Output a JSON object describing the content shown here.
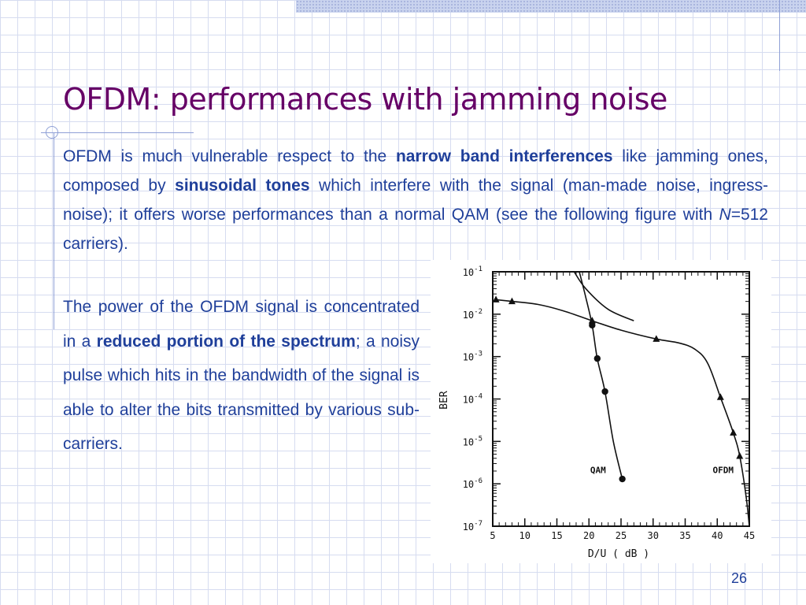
{
  "slide": {
    "title": "OFDM: performances with jamming noise",
    "page_number": "26",
    "para1": [
      {
        "t": "OFDM is much vulnerable respect to the "
      },
      {
        "t": "narrow band interferences",
        "b": true
      },
      {
        "t": " like jamming ones, composed by "
      },
      {
        "t": "sinusoidal tones",
        "b": true
      },
      {
        "t": " which interfere with the signal (man-made noise, ingress-noise); it offers worse performances than a normal QAM (see the following figure with "
      },
      {
        "t": "N",
        "i": true
      },
      {
        "t": "=512 carriers)."
      }
    ],
    "para2": [
      {
        "t": "The power of the OFDM signal is concentrated in a "
      },
      {
        "t": "reduced portion of the spectrum",
        "b": true
      },
      {
        "t": "; a noisy pulse which hits in the bandwidth of the signal is able to alter the bits transmitted by various sub-carriers."
      }
    ]
  },
  "chart_data": {
    "type": "line",
    "xlabel": "D/U ( dB )",
    "ylabel": "BER",
    "xlim": [
      5,
      45
    ],
    "ylim": [
      1e-07,
      0.1
    ],
    "log_y": true,
    "x_ticks": [
      "5",
      "10",
      "15",
      "20",
      "25",
      "30",
      "35",
      "40",
      "45"
    ],
    "y_ticks": [
      {
        "base": "10",
        "exp": "-1"
      },
      {
        "base": "10",
        "exp": "-2"
      },
      {
        "base": "10",
        "exp": "-3"
      },
      {
        "base": "10",
        "exp": "-4"
      },
      {
        "base": "10",
        "exp": "-5"
      },
      {
        "base": "10",
        "exp": "-6"
      },
      {
        "base": "10",
        "exp": "-7"
      }
    ],
    "series": [
      {
        "name": "QAM",
        "marker": "circle",
        "points": [
          [
            20.5,
            0.0055
          ],
          [
            21.3,
            0.0009
          ],
          [
            22.5,
            0.00015
          ],
          [
            25.2,
            1.3e-06
          ]
        ],
        "curve": [
          [
            18.5,
            0.15
          ],
          [
            19.5,
            0.025
          ],
          [
            20.5,
            0.0055
          ],
          [
            21.3,
            0.0009
          ],
          [
            22.5,
            0.00015
          ],
          [
            23.8,
            1e-05
          ],
          [
            25.2,
            1.3e-06
          ]
        ],
        "label_at": [
          20.2,
          1.8e-06
        ]
      },
      {
        "name": "OFDM",
        "marker": "triangle",
        "points": [
          [
            5.5,
            0.022
          ],
          [
            8,
            0.02
          ],
          [
            20.5,
            0.007
          ],
          [
            30.5,
            0.0026
          ],
          [
            40.5,
            0.00011
          ],
          [
            42.5,
            1.6e-05
          ],
          [
            43.5,
            4.5e-06
          ]
        ],
        "curve": [
          [
            5.5,
            0.022
          ],
          [
            8,
            0.02
          ],
          [
            12,
            0.017
          ],
          [
            16,
            0.012
          ],
          [
            20.5,
            0.007
          ],
          [
            25,
            0.0042
          ],
          [
            30.5,
            0.0026
          ],
          [
            34,
            0.0021
          ],
          [
            36.5,
            0.0015
          ],
          [
            38.5,
            0.0007
          ],
          [
            40.5,
            0.00011
          ],
          [
            42.5,
            1.6e-05
          ],
          [
            43.5,
            4.5e-06
          ],
          [
            44.5,
            5e-07
          ],
          [
            45,
            1e-07
          ]
        ],
        "label_at": [
          39.3,
          1.8e-06
        ]
      },
      {
        "name": "",
        "marker": "none",
        "curve": [
          [
            17.7,
            0.1
          ],
          [
            19.5,
            0.04
          ],
          [
            23,
            0.013
          ],
          [
            27,
            0.007
          ]
        ]
      }
    ]
  }
}
